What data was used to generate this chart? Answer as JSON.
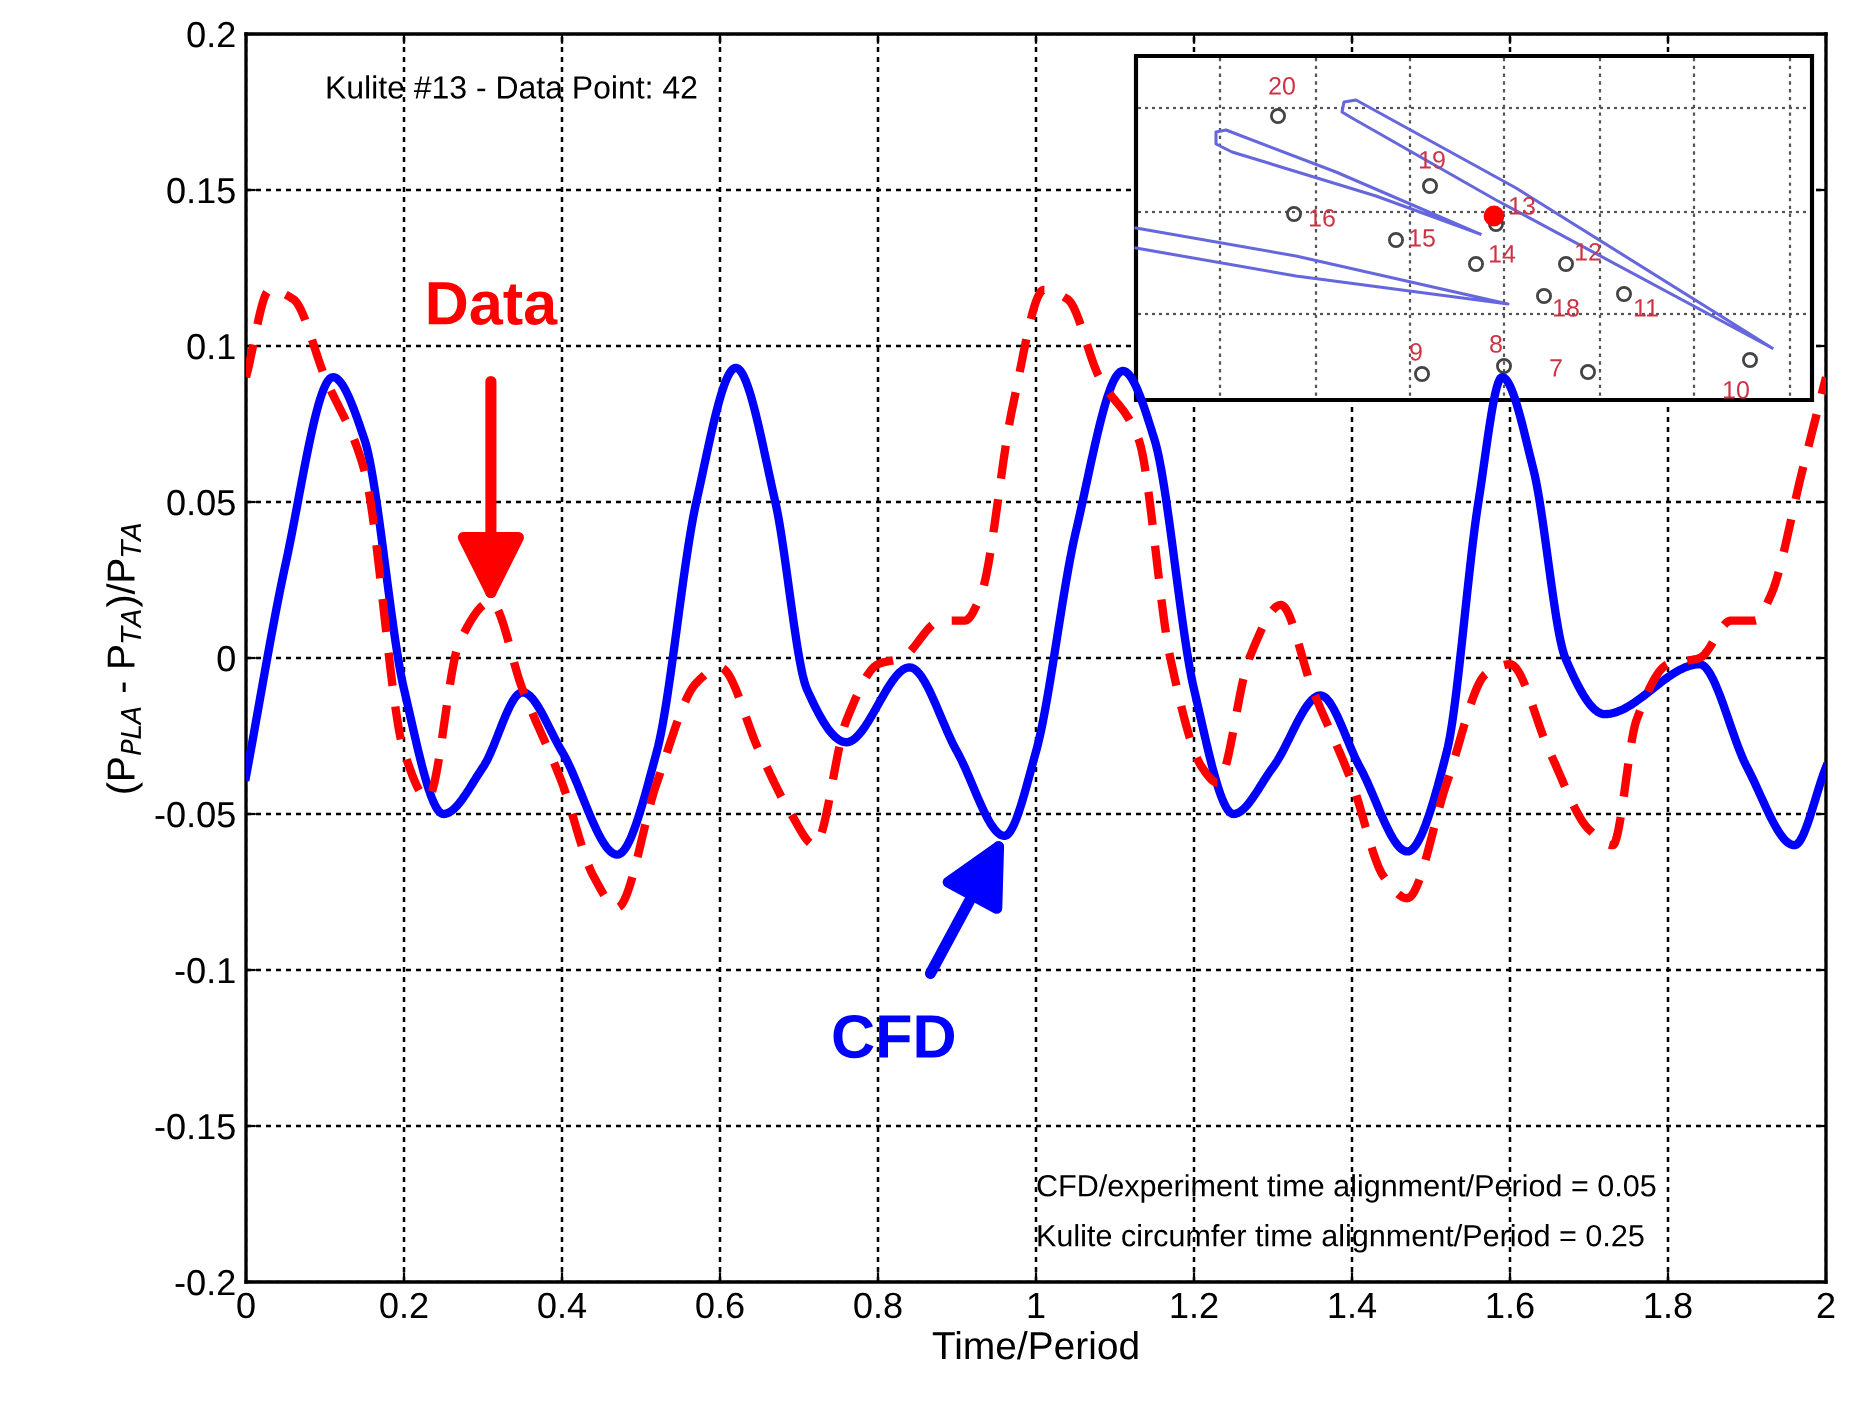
{
  "chart_data": {
    "type": "line",
    "xlabel": "Time/Period",
    "ylabel": "(P$_{PLA}$ - P$_{TA}$)/P$_{TA}$",
    "xlim": [
      0,
      2
    ],
    "xticks": [
      0,
      0.2,
      0.4,
      0.6,
      0.8,
      1,
      1.2,
      1.4,
      1.6,
      1.8,
      2
    ],
    "ylim": [
      -0.2,
      0.2
    ],
    "yticks": [
      -0.2,
      -0.15,
      -0.1,
      -0.05,
      0,
      0.05,
      0.1,
      0.15,
      0.2
    ],
    "grid": true,
    "marker": "none",
    "series": [
      {
        "color": "#0000ff",
        "line_style": "solid",
        "x": [
          0,
          0.05,
          0.11,
          0.15,
          0.2,
          0.25,
          0.3,
          0.35,
          0.4,
          0.47,
          0.52,
          0.57,
          0.62,
          0.67,
          0.71,
          0.76,
          0.84,
          0.9,
          0.96,
          1.0,
          1.05,
          1.11,
          1.15,
          1.2,
          1.25,
          1.3,
          1.36,
          1.41,
          1.47,
          1.52,
          1.56,
          1.59,
          1.63,
          1.67,
          1.72,
          1.84,
          1.9,
          1.96,
          2.0
        ],
        "values": [
          -0.038,
          0.03,
          0.09,
          0.07,
          -0.01,
          -0.05,
          -0.035,
          -0.011,
          -0.03,
          -0.063,
          -0.03,
          0.05,
          0.093,
          0.05,
          -0.01,
          -0.027,
          -0.003,
          -0.03,
          -0.057,
          -0.03,
          0.04,
          0.092,
          0.07,
          -0.01,
          -0.05,
          -0.035,
          -0.012,
          -0.035,
          -0.062,
          -0.03,
          0.05,
          0.09,
          0.06,
          0.0,
          -0.018,
          -0.002,
          -0.035,
          -0.06,
          -0.035
        ]
      },
      {
        "color": "#ff0000",
        "line_style": "dashed",
        "x": [
          0,
          0.03,
          0.06,
          0.1,
          0.15,
          0.2,
          0.23,
          0.27,
          0.31,
          0.35,
          0.4,
          0.44,
          0.47,
          0.52,
          0.57,
          0.6,
          0.65,
          0.69,
          0.72,
          0.76,
          0.8,
          0.83,
          0.88,
          0.91,
          0.93,
          0.97,
          1.01,
          1.04,
          1.08,
          1.13,
          1.17,
          1.21,
          1.23,
          1.27,
          1.31,
          1.35,
          1.4,
          1.44,
          1.47,
          1.52,
          1.57,
          1.6,
          1.65,
          1.7,
          1.73,
          1.76,
          1.8,
          1.84,
          1.88,
          1.91,
          1.93,
          1.97,
          2.0
        ],
        "values": [
          0.09,
          0.118,
          0.115,
          0.09,
          0.06,
          -0.03,
          -0.045,
          0.005,
          0.018,
          -0.01,
          -0.04,
          -0.07,
          -0.08,
          -0.04,
          -0.008,
          -0.003,
          -0.03,
          -0.05,
          -0.06,
          -0.02,
          -0.002,
          0.0,
          0.012,
          0.012,
          0.02,
          0.08,
          0.118,
          0.115,
          0.09,
          0.07,
          0.0,
          -0.035,
          -0.04,
          0.0,
          0.017,
          -0.01,
          -0.04,
          -0.07,
          -0.077,
          -0.04,
          -0.005,
          -0.002,
          -0.03,
          -0.055,
          -0.06,
          -0.02,
          -0.002,
          0.0,
          0.012,
          0.012,
          0.02,
          0.06,
          0.09
        ]
      }
    ],
    "annotations": [
      "Kulite #13 - Data Point: 42",
      {
        "text": "Data",
        "x": 0.31,
        "y": 0.017
      },
      {
        "text": "CFD",
        "x": 0.96,
        "y": -0.057
      },
      "CFD/experiment time alignment/Period = 0.05",
      "Kulite circumfer time alignment/Period = 0.25",
      "20",
      "19",
      "16",
      "15",
      "13",
      "14",
      "12",
      "18",
      "11",
      "9",
      "8",
      "7",
      "10"
    ]
  }
}
